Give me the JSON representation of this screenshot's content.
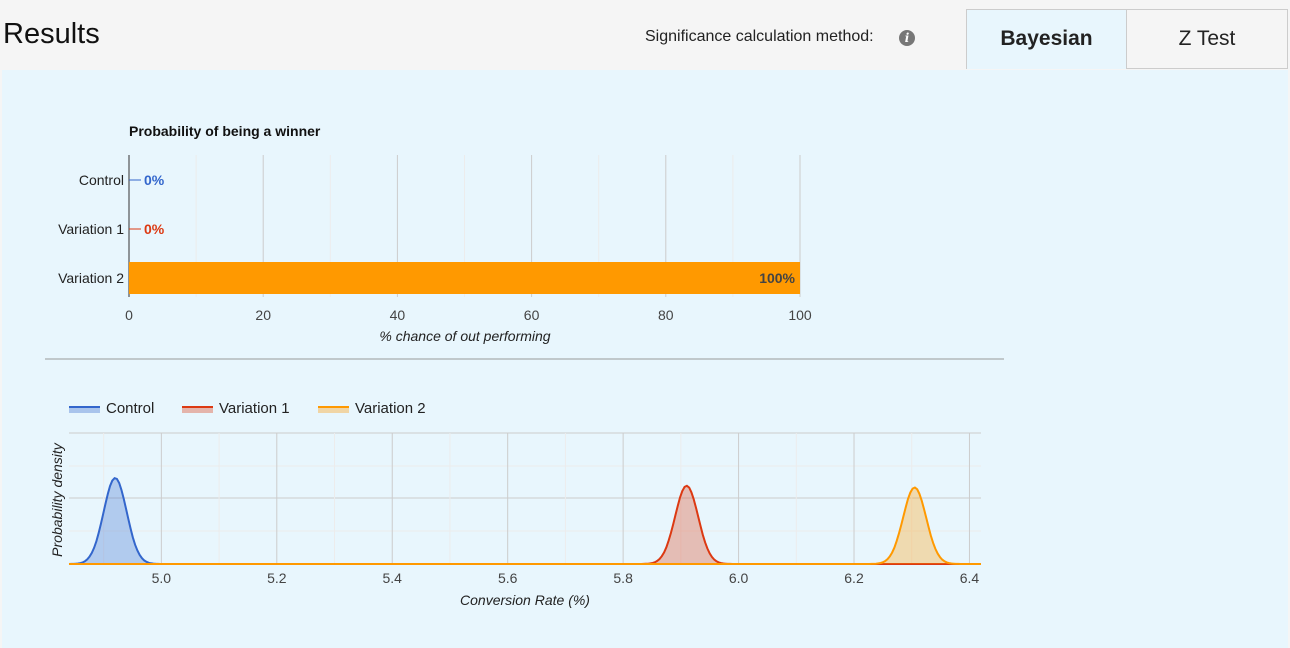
{
  "header": {
    "title": "Results",
    "significance_label": "Significance calculation method:",
    "info_icon": "info-icon",
    "tabs": [
      {
        "label": "Bayesian",
        "selected": true
      },
      {
        "label": "Z Test",
        "selected": false
      }
    ]
  },
  "colors": {
    "control": "#3366cc",
    "variation1": "#dc3912",
    "variation2": "#ff9900",
    "panel_bg": "#e8f6fd"
  },
  "chart_data": [
    {
      "type": "bar",
      "orientation": "horizontal",
      "title": "Probability of being a winner",
      "categories": [
        "Control",
        "Variation 1",
        "Variation 2"
      ],
      "values": [
        0,
        0,
        100
      ],
      "value_labels": [
        "0%",
        "0%",
        "100%"
      ],
      "xlabel": "% chance of out performing",
      "xlim": [
        0,
        100
      ],
      "xticks": [
        "0",
        "20",
        "40",
        "60",
        "80",
        "100"
      ],
      "grid": true
    },
    {
      "type": "area",
      "xlabel": "Conversion Rate (%)",
      "ylabel": "Probability density",
      "xlim": [
        4.84,
        6.42
      ],
      "xticks": [
        "5.0",
        "5.2",
        "5.4",
        "5.6",
        "5.8",
        "6.0",
        "6.2",
        "6.4"
      ],
      "legend": "top-left",
      "series": [
        {
          "name": "Control",
          "mean": 4.92,
          "sd": 0.02,
          "peak": 1.0
        },
        {
          "name": "Variation 1",
          "mean": 5.91,
          "sd": 0.02,
          "peak": 0.91
        },
        {
          "name": "Variation 2",
          "mean": 6.305,
          "sd": 0.02,
          "peak": 0.89
        }
      ]
    }
  ]
}
